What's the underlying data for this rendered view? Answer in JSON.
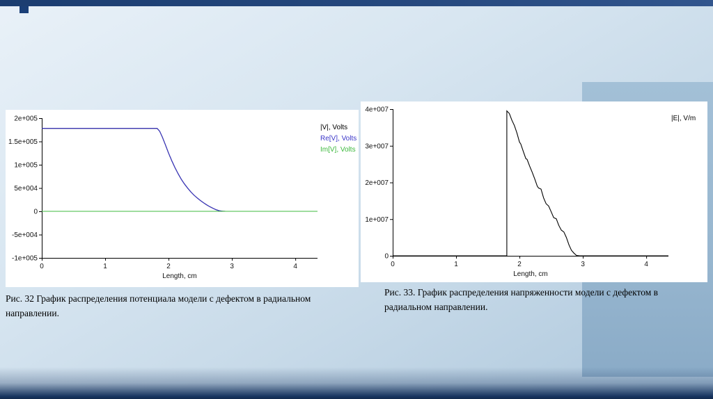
{
  "captions": {
    "left": "Рис. 32 График распределения потенциала модели с дефектом в радиальном направлении.",
    "right": "Рис. 33. График распределения напряженности модели с дефектом в радиальном направлении."
  },
  "chart_data": [
    {
      "type": "line",
      "title": "",
      "xlabel": "Length, cm",
      "ylabel": "",
      "xlim": [
        0,
        4.35
      ],
      "ylim": [
        -100000,
        200000
      ],
      "xticks": [
        0,
        1,
        2,
        3,
        4
      ],
      "yticks": [
        200000,
        150000,
        100000,
        50000,
        0,
        -50000,
        -100000
      ],
      "ytick_labels": [
        "2e+005",
        "1.5e+005",
        "1e+005",
        "5e+004",
        "0",
        "-5e+004",
        "-1e+005"
      ],
      "grid": false,
      "legend_position": "outside-top-right",
      "legend": [
        {
          "label": "|V|, Volts",
          "color": "#000000"
        },
        {
          "label": "Re[V], Volts",
          "color": "#3a35c8"
        },
        {
          "label": "Im[V], Volts",
          "color": "#3cb83c"
        }
      ],
      "series": [
        {
          "name": "abs-V",
          "color": "#000000",
          "points": [
            [
              0,
              178000
            ],
            [
              1.82,
              178000
            ],
            [
              1.86,
              172000
            ],
            [
              1.9,
              160000
            ],
            [
              1.95,
              143000
            ],
            [
              2.0,
              125000
            ],
            [
              2.05,
              109000
            ],
            [
              2.1,
              94000
            ],
            [
              2.15,
              81000
            ],
            [
              2.2,
              69000
            ],
            [
              2.25,
              59000
            ],
            [
              2.3,
              50000
            ],
            [
              2.35,
              42000
            ],
            [
              2.4,
              35000
            ],
            [
              2.45,
              29000
            ],
            [
              2.5,
              23500
            ],
            [
              2.55,
              18500
            ],
            [
              2.6,
              14000
            ],
            [
              2.65,
              10000
            ],
            [
              2.7,
              6500
            ],
            [
              2.75,
              3500
            ],
            [
              2.8,
              1200
            ],
            [
              2.85,
              300
            ],
            [
              2.9,
              0
            ],
            [
              3.0,
              0
            ]
          ]
        },
        {
          "name": "Re-V",
          "color": "#3a35c8",
          "points": [
            [
              0,
              178000
            ],
            [
              1.82,
              178000
            ],
            [
              1.86,
              172000
            ],
            [
              1.9,
              160000
            ],
            [
              1.95,
              143000
            ],
            [
              2.0,
              125000
            ],
            [
              2.05,
              109000
            ],
            [
              2.1,
              94000
            ],
            [
              2.15,
              81000
            ],
            [
              2.2,
              69000
            ],
            [
              2.25,
              59000
            ],
            [
              2.3,
              50000
            ],
            [
              2.35,
              42000
            ],
            [
              2.4,
              35000
            ],
            [
              2.45,
              29000
            ],
            [
              2.5,
              23500
            ],
            [
              2.55,
              18500
            ],
            [
              2.6,
              14000
            ],
            [
              2.65,
              10000
            ],
            [
              2.7,
              6500
            ],
            [
              2.75,
              3500
            ],
            [
              2.8,
              1200
            ],
            [
              2.85,
              300
            ],
            [
              2.9,
              0
            ],
            [
              3.0,
              0
            ]
          ]
        },
        {
          "name": "Im-V",
          "color": "#3cb83c",
          "points": [
            [
              0,
              0
            ],
            [
              4.35,
              0
            ]
          ]
        }
      ]
    },
    {
      "type": "line",
      "title": "",
      "xlabel": "Length, cm",
      "ylabel": "",
      "xlim": [
        0,
        4.35
      ],
      "ylim": [
        0,
        40000000
      ],
      "xticks": [
        0,
        1,
        2,
        3,
        4
      ],
      "yticks": [
        40000000,
        30000000,
        20000000,
        10000000,
        0
      ],
      "ytick_labels": [
        "4e+007",
        "3e+007",
        "2e+007",
        "1e+007",
        "0"
      ],
      "grid": false,
      "legend_position": "outside-top-right",
      "legend": [
        {
          "label": "|E|, V/m",
          "color": "#000000"
        }
      ],
      "series": [
        {
          "name": "abs-E",
          "color": "#000000",
          "points": [
            [
              0,
              0
            ],
            [
              1.8,
              0
            ],
            [
              1.8,
              39500000
            ],
            [
              1.84,
              38800000
            ],
            [
              1.88,
              37000000
            ],
            [
              1.92,
              35500000
            ],
            [
              1.96,
              33500000
            ],
            [
              2.0,
              31000000
            ],
            [
              2.02,
              30500000
            ],
            [
              2.06,
              28500000
            ],
            [
              2.1,
              26500000
            ],
            [
              2.12,
              26300000
            ],
            [
              2.16,
              24500000
            ],
            [
              2.2,
              22800000
            ],
            [
              2.24,
              21000000
            ],
            [
              2.28,
              19000000
            ],
            [
              2.3,
              18500000
            ],
            [
              2.34,
              18200000
            ],
            [
              2.38,
              15800000
            ],
            [
              2.42,
              14200000
            ],
            [
              2.46,
              13600000
            ],
            [
              2.5,
              12000000
            ],
            [
              2.54,
              10400000
            ],
            [
              2.58,
              10100000
            ],
            [
              2.62,
              8300000
            ],
            [
              2.66,
              7000000
            ],
            [
              2.7,
              6500000
            ],
            [
              2.74,
              5000000
            ],
            [
              2.78,
              3000000
            ],
            [
              2.82,
              1500000
            ],
            [
              2.86,
              700000
            ],
            [
              2.9,
              100000
            ],
            [
              2.95,
              0
            ],
            [
              4.35,
              0
            ]
          ]
        }
      ]
    }
  ]
}
